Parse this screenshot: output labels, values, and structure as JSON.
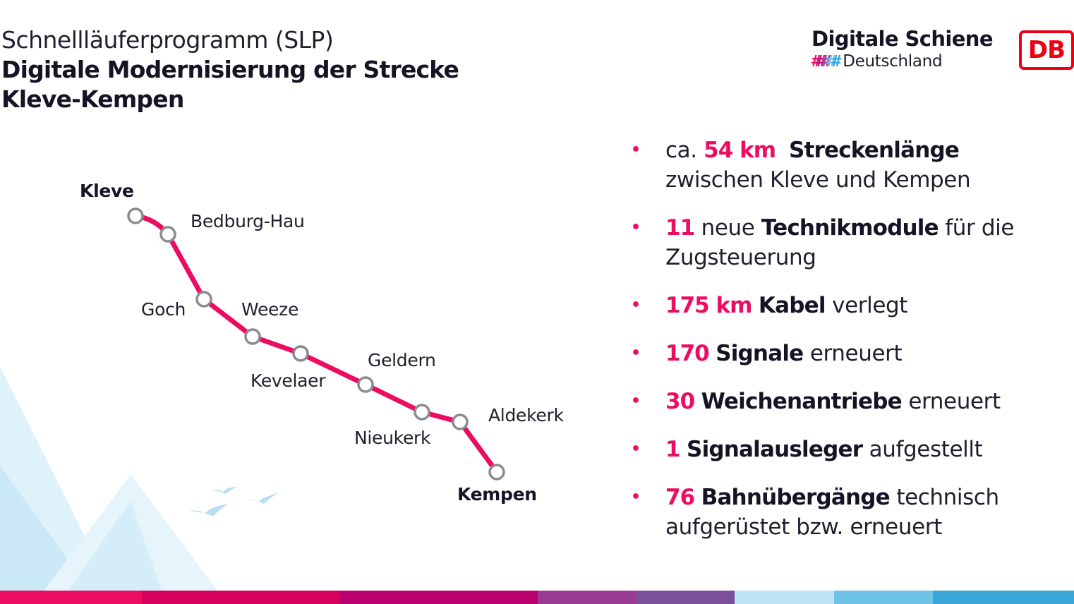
{
  "header": {
    "title_line1": "Schnellläuferprogramm (SLP)",
    "title_line2": "Digitale Modernisierung der Strecke",
    "title_line3": "Kleve-Kempen"
  },
  "brand": {
    "name": "Digitale Schiene",
    "hashes": "#####",
    "country": "Deutschland",
    "hash_colors": [
      "#ec0d63",
      "#c1127a",
      "#9b3fa0",
      "#6ec3e6",
      "#3aa7d8"
    ]
  },
  "db_logo": {
    "text": "DB",
    "color": "#ec0016"
  },
  "route": {
    "line_color": "#ec0d63",
    "stations": [
      {
        "name": "Kleve",
        "emphasis": true
      },
      {
        "name": "Bedburg-Hau",
        "emphasis": false
      },
      {
        "name": "Goch",
        "emphasis": false
      },
      {
        "name": "Weeze",
        "emphasis": false
      },
      {
        "name": "Kevelaer",
        "emphasis": false
      },
      {
        "name": "Geldern",
        "emphasis": false
      },
      {
        "name": "Nieukerk",
        "emphasis": false
      },
      {
        "name": "Aldekerk",
        "emphasis": false
      },
      {
        "name": "Kempen",
        "emphasis": true
      }
    ]
  },
  "facts": [
    {
      "prefix": "ca. ",
      "num": "54 km",
      "strong": "Streckenlänge",
      "rest": "",
      "line2": "zwischen Kleve und Kempen"
    },
    {
      "prefix": "",
      "num": "11",
      "mid": " neue ",
      "strong": "Technikmodule",
      "rest": " für die",
      "line2": "Zugsteuerung"
    },
    {
      "prefix": "",
      "num": "175 km",
      "strong": "Kabel",
      "rest": " verlegt",
      "line2": ""
    },
    {
      "prefix": "",
      "num": "170",
      "strong": "Signale",
      "rest": " erneuert",
      "line2": ""
    },
    {
      "prefix": "",
      "num": "30",
      "strong": "Weichenantriebe",
      "rest": " erneuert",
      "line2": ""
    },
    {
      "prefix": "",
      "num": "1",
      "strong": "Signalausleger",
      "rest": " aufgestellt",
      "line2": ""
    },
    {
      "prefix": "",
      "num": "76",
      "strong": "Bahnübergänge",
      "rest": " technisch",
      "line2": "aufgerüstet bzw. erneuert"
    }
  ],
  "footer_bar_colors": [
    "#ec0d63",
    "#d6005f",
    "#b9006e",
    "#9b3a93",
    "#7a4f9c",
    "#bfe4f6",
    "#6ec3e6",
    "#3aa7d8"
  ]
}
